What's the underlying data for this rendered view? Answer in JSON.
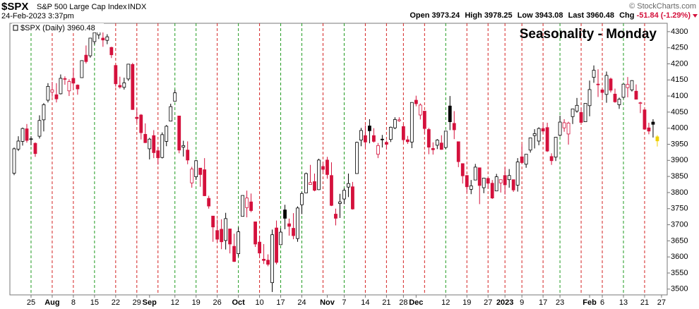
{
  "chart_data": {
    "type": "candlestick",
    "symbol": "$SPX",
    "title": "S&P 500 Large Cap Index",
    "exchange": "INDX",
    "timestamp": "24-Feb-2023 3:37pm",
    "source": "© StockCharts.com",
    "annotation": "Seasonality - Monday",
    "header_labels": {
      "open": "Open",
      "high": "High",
      "low": "Low",
      "last": "Last",
      "change": "Chg"
    },
    "change_label": "-51.84 (-1.29%)",
    "categories": [
      null,
      null,
      null,
      null,
      "25",
      null,
      null,
      null,
      null,
      "Aug",
      null,
      null,
      null,
      null,
      "8",
      null,
      null,
      null,
      null,
      "15",
      null,
      null,
      null,
      null,
      "22",
      null,
      null,
      null,
      null,
      "29",
      null,
      null,
      "Sep",
      null,
      null,
      null,
      null,
      null,
      "12",
      null,
      null,
      null,
      null,
      "19",
      null,
      null,
      null,
      null,
      "26",
      null,
      null,
      null,
      null,
      "Oct",
      null,
      null,
      null,
      null,
      "10",
      null,
      null,
      null,
      null,
      "17",
      null,
      null,
      null,
      null,
      "24",
      null,
      null,
      null,
      null,
      null,
      "Nov",
      null,
      null,
      null,
      "7",
      null,
      null,
      null,
      null,
      "14",
      null,
      null,
      null,
      null,
      "21",
      null,
      null,
      null,
      "28",
      null,
      null,
      "Dec",
      null,
      null,
      null,
      null,
      null,
      null,
      "12",
      null,
      null,
      null,
      null,
      "19",
      null,
      null,
      null,
      null,
      "27",
      null,
      null,
      null,
      "2023",
      null,
      null,
      null,
      "9",
      null,
      null,
      null,
      null,
      "17",
      null,
      null,
      null,
      "23",
      null,
      null,
      null,
      null,
      null,
      null,
      "Feb",
      null,
      null,
      "6",
      null,
      null,
      null,
      null,
      "13",
      null,
      null,
      null,
      null,
      "21",
      null,
      null,
      null,
      "27"
    ],
    "week_starts": [
      4,
      9,
      14,
      19,
      24,
      29,
      34,
      38,
      43,
      48,
      53,
      58,
      63,
      68,
      73,
      78,
      83,
      88,
      92,
      97,
      102,
      107,
      112,
      116,
      120,
      125,
      129,
      134,
      139,
      144,
      149
    ],
    "series": [
      {
        "name": "$SPX (Daily)",
        "open": [
          3860,
          3935,
          3959,
          3998,
          3965,
          3953,
          3975,
          4026,
          4087,
          4112,
          4104,
          4107,
          4154,
          4116,
          4155,
          4134,
          4157,
          4227,
          4225,
          4269,
          4290,
          4280,
          4273,
          4251,
          4195,
          4133,
          4127,
          4153,
          4198,
          4034,
          4041,
          3981,
          3936,
          3977,
          3930,
          3909,
          3959,
          4022,
          4084,
          4038,
          3941,
          3932,
          3830,
          3849,
          3876,
          3871,
          3782,
          3727,
          3682,
          3686,
          3651,
          3687,
          3633,
          3610,
          3726,
          3753,
          3771,
          3709,
          3646,
          3593,
          3590,
          3520,
          3690,
          3638,
          3746,
          3703,
          3689,
          3657,
          3762,
          3799,
          3825,
          3834,
          3809,
          3881,
          3901,
          3853,
          3733,
          3766,
          3780,
          3817,
          3818,
          3859,
          3963,
          3977,
          4007,
          3977,
          3919,
          3966,
          3956,
          3965,
          4001,
          4023,
          4005,
          3964,
          3957,
          4087,
          4041,
          4053,
          3996,
          3937,
          3947,
          3954,
          3940,
          4069,
          4015,
          3958,
          3890,
          3853,
          3810,
          3839,
          3877,
          3815,
          3844,
          3829,
          3805,
          3830,
          3853,
          3840,
          3840,
          3823,
          3911,
          3888,
          3932,
          3977,
          3960,
          3999,
          4002,
          3912,
          3910,
          3978,
          4001,
          3982,
          4036,
          4053,
          4049,
          4020,
          4070,
          4158,
          4137,
          4119,
          4105,
          4153,
          4106,
          4073,
          4096,
          4126,
          4119,
          4115,
          4077,
          4057,
          4001,
          4019,
          3973.24,
          null
        ],
        "high": [
          3940,
          3975,
          4002,
          4013,
          3975,
          3956,
          4040,
          4078,
          4140,
          4144,
          4140,
          4167,
          4161,
          4152,
          4187,
          4136,
          4211,
          4257,
          4280,
          4301,
          4325,
          4302,
          4292,
          4253,
          4195,
          4160,
          4157,
          4200,
          4203,
          4062,
          4044,
          4015,
          3970,
          3994,
          3942,
          3987,
          4010,
          4076,
          4119,
          4038,
          3961,
          3959,
          3880,
          3901,
          3876,
          3907,
          3790,
          3727,
          3716,
          3717,
          3737,
          3687,
          3672,
          3692,
          3791,
          3806,
          3797,
          3710,
          3666,
          3640,
          3608,
          3685,
          3713,
          3689,
          3762,
          3719,
          3736,
          3757,
          3802,
          3862,
          3886,
          3859,
          3905,
          3893,
          3911,
          3894,
          3750,
          3796,
          3814,
          3859,
          3833,
          3958,
          4001,
          4009,
          4028,
          4000,
          3954,
          3979,
          3962,
          4005,
          4034,
          4034,
          4012,
          3976,
          4080,
          4101,
          4077,
          4053,
          4001,
          3956,
          3966,
          3978,
          3991,
          4100,
          4053,
          3958,
          3890,
          3854,
          3839,
          3889,
          3877,
          3845,
          3846,
          3839,
          3858,
          3840,
          3878,
          3873,
          3840,
          3907,
          3950,
          3919,
          3970,
          3997,
          4003,
          4015,
          4017,
          3922,
          3973,
          4039,
          4028,
          4020,
          4060,
          4094,
          4063,
          4077,
          4148,
          4195,
          4183,
          4124,
          4176,
          4157,
          4123,
          4095,
          4138,
          4159,
          4149,
          4136,
          4082,
          4059,
          4017,
          4028,
          3978.25,
          null
        ],
        "low": [
          3854,
          3929,
          3946,
          3955,
          3947,
          3911,
          3968,
          3990,
          4080,
          4097,
          4080,
          4105,
          4135,
          4100,
          4120,
          4104,
          4157,
          4201,
          4219,
          4260,
          4277,
          4253,
          4261,
          4218,
          4129,
          4123,
          4120,
          4147,
          4057,
          4017,
          3965,
          3954,
          3903,
          3907,
          3887,
          3906,
          3944,
          4022,
          4084,
          3922,
          3912,
          3888,
          3815,
          3839,
          3818,
          3789,
          3750,
          3647,
          3645,
          3624,
          3623,
          3611,
          3584,
          3601,
          3726,
          3723,
          3739,
          3631,
          3599,
          3578,
          3571,
          3491,
          3577,
          3638,
          3686,
          3666,
          3655,
          3647,
          3733,
          3799,
          3824,
          3804,
          3808,
          3863,
          3843,
          3758,
          3698,
          3721,
          3764,
          3786,
          3747,
          3859,
          3944,
          3939,
          3953,
          3955,
          3907,
          3940,
          3934,
          3957,
          3997,
          4020,
          3957,
          3951,
          3938,
          4068,
          4027,
          3983,
          3919,
          3918,
          3935,
          3933,
          3936,
          3994,
          3966,
          3879,
          3828,
          3800,
          3795,
          3839,
          3764,
          3798,
          3813,
          3780,
          3805,
          3800,
          3794,
          3815,
          3802,
          3803,
          3890,
          3877,
          3924,
          3937,
          3947,
          3984,
          3926,
          3886,
          3898,
          3974,
          3989,
          3949,
          4013,
          4048,
          4017,
          4020,
          4037,
          4141,
          4097,
          4094,
          4079,
          4111,
          4079,
          4060,
          4092,
          4096,
          4114,
          4089,
          4047,
          3995,
          3981,
          3971,
          3943.08,
          null
        ],
        "close": [
          3936,
          3960,
          3999,
          3962,
          3967,
          3921,
          4024,
          4073,
          4130,
          4119,
          4091,
          4155,
          4152,
          4145,
          4140,
          4122,
          4210,
          4207,
          4280,
          4297,
          4305,
          4274,
          4284,
          4228,
          4138,
          4128,
          4141,
          4199,
          4058,
          4030,
          3986,
          3955,
          3966,
          3924,
          3908,
          3980,
          4006,
          4067,
          4110,
          3932,
          3946,
          3901,
          3873,
          3899,
          3856,
          3790,
          3758,
          3693,
          3655,
          3647,
          3719,
          3640,
          3586,
          3678,
          3791,
          3783,
          3744,
          3640,
          3612,
          3589,
          3577,
          3669,
          3583,
          3677,
          3720,
          3695,
          3666,
          3752,
          3797,
          3859,
          3831,
          3807,
          3901,
          3872,
          3856,
          3760,
          3720,
          3771,
          3807,
          3828,
          3749,
          3956,
          3993,
          3957,
          3992,
          3959,
          3946,
          3965,
          3950,
          4003,
          4027,
          4026,
          3964,
          3958,
          4080,
          4076,
          4072,
          3999,
          3941,
          3933,
          3963,
          3934,
          3991,
          4020,
          3995,
          3896,
          3852,
          3818,
          3821,
          3879,
          3822,
          3845,
          3829,
          3783,
          3849,
          3840,
          3824,
          3853,
          3808,
          3895,
          3893,
          3919,
          3970,
          3983,
          3999,
          3991,
          3929,
          3899,
          3972,
          4019,
          4017,
          4016,
          4060,
          4071,
          4018,
          4077,
          4120,
          4180,
          4136,
          4111,
          4164,
          4118,
          4082,
          4090,
          4137,
          4136,
          4148,
          4090,
          4079,
          3997,
          3991,
          4012,
          3960.48,
          null
        ]
      }
    ],
    "up_color": "#000000",
    "down_color": "#d4113c",
    "last_bar_color": "#f0d000",
    "up_week_color": "#1f9a1f",
    "down_week_color": "#d42222",
    "annotation_color": "#1a1ad6",
    "ylim": [
      3482,
      4326
    ],
    "yticks": [
      3500,
      3550,
      3600,
      3650,
      3700,
      3750,
      3800,
      3850,
      3900,
      3950,
      4000,
      4050,
      4100,
      4150,
      4200,
      4250,
      4300
    ],
    "grid": false
  }
}
